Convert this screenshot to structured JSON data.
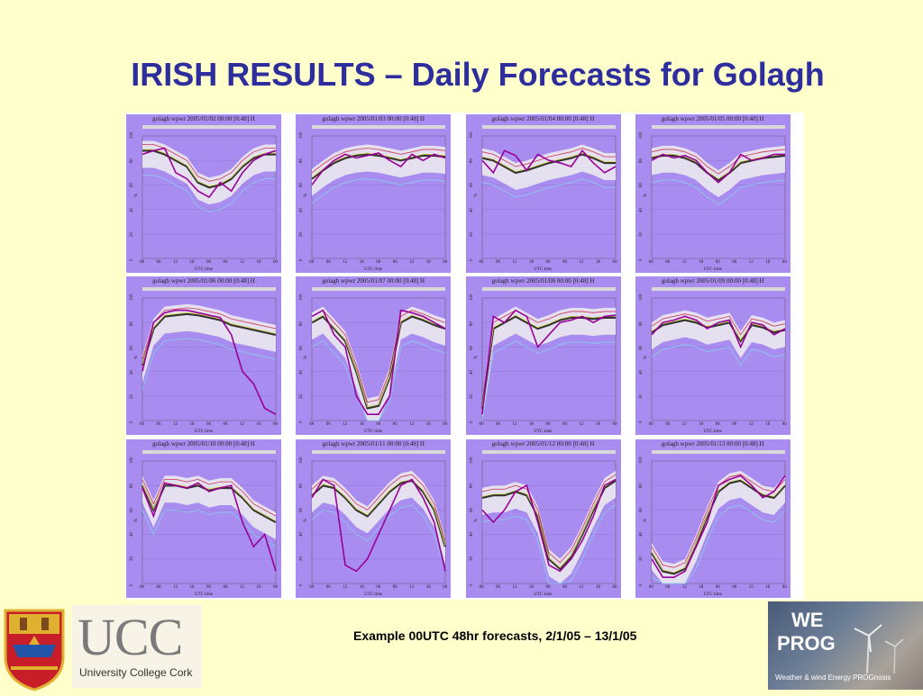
{
  "title": "IRISH RESULTS – Daily Forecasts for Golagh",
  "caption": "Example 00UTC 48hr forecasts, 2/1/05 – 13/1/05",
  "logos": {
    "ucc_main": "UCC",
    "ucc_sub": "University College Cork",
    "weprog_we": "WE",
    "weprog_prog": "PROG",
    "weprog_tag": "Weather & wind Energy PROGnosis"
  },
  "colors": {
    "background": "#ffffcc",
    "title": "#2d2d9e",
    "panel": "#a98cf0",
    "observed": "#990099",
    "ensemble": "#333333",
    "spread": "#87ceeb",
    "alt": "#cc3355",
    "fit": "#dddd55"
  },
  "chart_data": {
    "type": "line",
    "panel_xlabel": "UTC time",
    "x_ticks": [
      "00",
      "06",
      "12",
      "18",
      "00",
      "06",
      "12",
      "18",
      "00"
    ],
    "y_ticks": [
      "0",
      "20",
      "40",
      "60",
      "80",
      "100"
    ],
    "ylim": [
      0,
      100
    ],
    "ylabel": "%",
    "panels": [
      {
        "title": "golagh wpwr 2005/01/02 00:00 [0:48] H",
        "observed": [
          85,
          88,
          90,
          70,
          65,
          55,
          50,
          62,
          55,
          70,
          80,
          85,
          88
        ],
        "ensemble": [
          88,
          88,
          85,
          80,
          75,
          62,
          58,
          60,
          65,
          75,
          82,
          85,
          85
        ]
      },
      {
        "title": "golagh wpwr 2005/01/03 00:00 [0:48] H",
        "observed": [
          60,
          72,
          80,
          85,
          82,
          84,
          86,
          80,
          75,
          85,
          80,
          85,
          82
        ],
        "ensemble": [
          65,
          72,
          78,
          82,
          84,
          85,
          84,
          82,
          80,
          82,
          84,
          84,
          83
        ]
      },
      {
        "title": "golagh wpwr 2005/01/04 00:00 [0:48] H",
        "observed": [
          80,
          70,
          88,
          84,
          72,
          85,
          80,
          78,
          75,
          88,
          78,
          70,
          75
        ],
        "ensemble": [
          82,
          80,
          75,
          70,
          72,
          75,
          78,
          80,
          82,
          85,
          82,
          78,
          78
        ]
      },
      {
        "title": "golagh wpwr 2005/01/05 00:00 [0:48] H",
        "observed": [
          80,
          85,
          82,
          84,
          80,
          70,
          62,
          70,
          85,
          80,
          82,
          85,
          85
        ],
        "ensemble": [
          82,
          84,
          84,
          82,
          78,
          70,
          64,
          70,
          78,
          80,
          82,
          83,
          84
        ]
      },
      {
        "title": "golagh wpwr 2005/01/06 00:00 [0:48] H",
        "observed": [
          40,
          80,
          88,
          90,
          90,
          88,
          86,
          84,
          70,
          40,
          30,
          10,
          5
        ],
        "ensemble": [
          45,
          75,
          85,
          86,
          87,
          86,
          84,
          82,
          78,
          76,
          74,
          72,
          70
        ]
      },
      {
        "title": "golagh wpwr 2005/01/07 00:00 [0:48] H",
        "observed": [
          85,
          90,
          70,
          60,
          20,
          5,
          5,
          20,
          90,
          88,
          85,
          80,
          75
        ],
        "ensemble": [
          80,
          85,
          75,
          65,
          40,
          10,
          12,
          35,
          80,
          85,
          82,
          78,
          75
        ]
      },
      {
        "title": "golagh wpwr 2005/01/08 00:00 [0:48] H",
        "observed": [
          5,
          85,
          80,
          90,
          85,
          60,
          70,
          80,
          82,
          85,
          80,
          85,
          86
        ],
        "ensemble": [
          10,
          75,
          80,
          85,
          80,
          75,
          78,
          82,
          84,
          84,
          83,
          84,
          84
        ]
      },
      {
        "title": "golagh wpwr 2005/01/09 00:00 [0:48] H",
        "observed": [
          70,
          80,
          82,
          85,
          82,
          75,
          80,
          82,
          60,
          80,
          78,
          70,
          75
        ],
        "ensemble": [
          72,
          78,
          80,
          82,
          80,
          76,
          78,
          80,
          65,
          78,
          76,
          72,
          74
        ]
      },
      {
        "title": "golagh wpwr 2005/01/10 00:00 [0:48] H",
        "observed": [
          78,
          55,
          82,
          80,
          78,
          82,
          75,
          78,
          80,
          50,
          30,
          40,
          10
        ],
        "ensemble": [
          80,
          60,
          80,
          80,
          78,
          80,
          76,
          78,
          78,
          70,
          60,
          55,
          50
        ]
      },
      {
        "title": "golagh wpwr 2005/01/11 00:00 [0:48] H",
        "observed": [
          70,
          85,
          80,
          15,
          10,
          20,
          40,
          60,
          80,
          85,
          70,
          50,
          10
        ],
        "ensemble": [
          72,
          80,
          78,
          70,
          60,
          55,
          65,
          75,
          82,
          84,
          75,
          60,
          30
        ]
      },
      {
        "title": "golagh wpwr 2005/01/12 00:00 [0:48] H",
        "observed": [
          60,
          50,
          60,
          75,
          80,
          50,
          15,
          10,
          20,
          35,
          55,
          80,
          85
        ],
        "ensemble": [
          70,
          72,
          72,
          75,
          72,
          55,
          20,
          12,
          22,
          40,
          60,
          78,
          84
        ]
      },
      {
        "title": "golagh wpwr 2005/01/13 00:00 [0:48] H",
        "observed": [
          20,
          5,
          5,
          10,
          30,
          50,
          80,
          85,
          88,
          80,
          70,
          75,
          88
        ],
        "ensemble": [
          25,
          10,
          8,
          12,
          32,
          55,
          75,
          82,
          84,
          78,
          72,
          70,
          80
        ]
      }
    ]
  }
}
